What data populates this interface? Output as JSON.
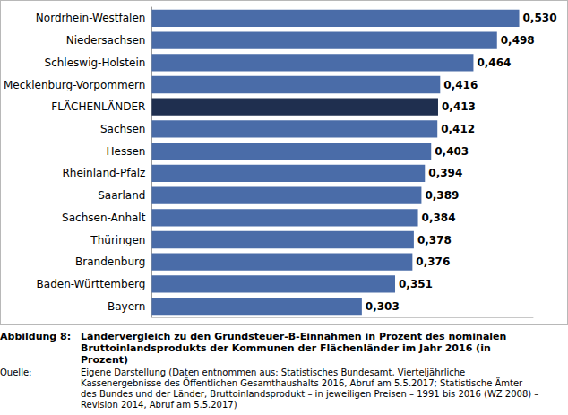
{
  "chart_data": {
    "type": "bar",
    "orientation": "horizontal",
    "figure_label": "Abbildung 8:",
    "title": "Ländervergleich zu den Grundsteuer-B-Einnahmen in Prozent des nominalen Bruttoinlandsprodukts der Kommunen der Flächenländer im Jahr 2016 (in Prozent)",
    "source_label": "Quelle:",
    "source": "Eigene Darstellung (Daten entnommen aus: Statistisches Bundesamt, Vierteljährliche Kassenergebnisse des Öffentlichen Gesamthaushalts 2016, Abruf am 5.5.2017; Statistische Ämter des Bundes und der Länder, Bruttoinlandsprodukt – in jeweiligen Preisen – 1991 bis 2016 (WZ 2008) – Revision 2014, Abruf am 5.5.2017)",
    "categories": [
      "Nordrhein-Westfalen",
      "Niedersachsen",
      "Schleswig-Holstein",
      "Mecklenburg-Vorpommern",
      "FLÄCHENLÄNDER",
      "Sachsen",
      "Hessen",
      "Rheinland-Pfalz",
      "Saarland",
      "Sachsen-Anhalt",
      "Thüringen",
      "Brandenburg",
      "Baden-Württemberg",
      "Bayern"
    ],
    "values": [
      0.53,
      0.498,
      0.464,
      0.416,
      0.413,
      0.412,
      0.403,
      0.394,
      0.389,
      0.384,
      0.378,
      0.376,
      0.351,
      0.303
    ],
    "value_labels": [
      "0,530",
      "0,498",
      "0,464",
      "0,416",
      "0,413",
      "0,412",
      "0,403",
      "0,394",
      "0,389",
      "0,384",
      "0,378",
      "0,376",
      "0,351",
      "0,303"
    ],
    "colors": [
      "#4a6ca8",
      "#4a6ca8",
      "#4a6ca8",
      "#4a6ca8",
      "#1f2f4f",
      "#4a6ca8",
      "#4a6ca8",
      "#4a6ca8",
      "#4a6ca8",
      "#4a6ca8",
      "#4a6ca8",
      "#4a6ca8",
      "#4a6ca8",
      "#4a6ca8"
    ],
    "xlim": [
      0,
      0.55
    ],
    "data_labels": true,
    "tick_labels": "y",
    "grid": false
  }
}
